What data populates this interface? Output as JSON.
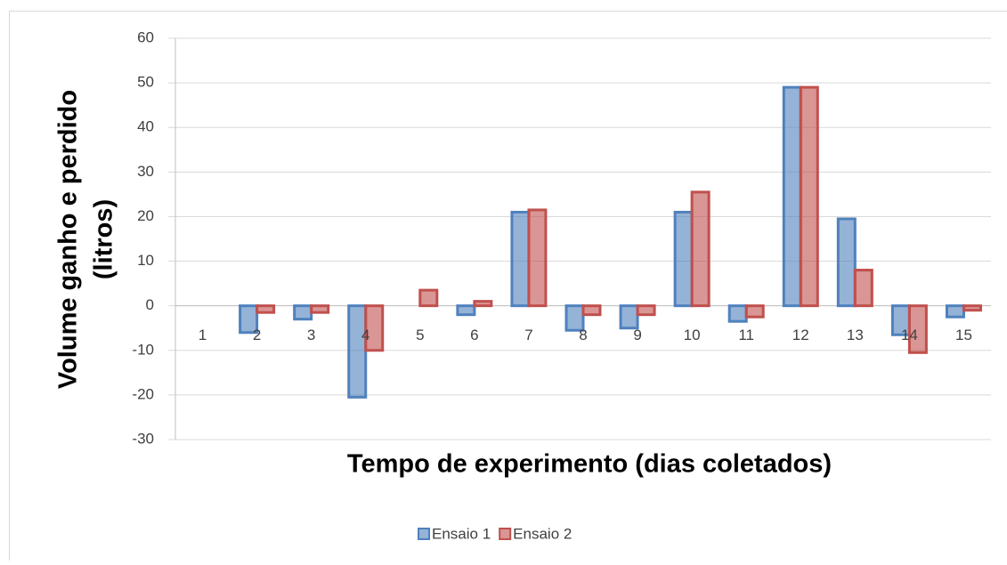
{
  "chart_data": {
    "type": "bar",
    "xlabel": "Tempo de experimento (dias coletados)",
    "ylabel": [
      "Volume ganho e perdido",
      "(litros)"
    ],
    "categories": [
      "1",
      "2",
      "3",
      "4",
      "5",
      "6",
      "7",
      "8",
      "9",
      "10",
      "11",
      "12",
      "13",
      "14",
      "15"
    ],
    "series": [
      {
        "name": "Ensaio 1",
        "color": "#4f81bd",
        "values": [
          0,
          -6,
          -3,
          -20.5,
          0,
          -2,
          21,
          -5.5,
          -5,
          21,
          -3.5,
          49,
          19.5,
          -6.5,
          -2.5
        ]
      },
      {
        "name": "Ensaio 2",
        "color": "#c0504d",
        "values": [
          0,
          -1.5,
          -1.5,
          -10,
          3.5,
          1,
          21.5,
          -2,
          -2,
          25.5,
          -2.5,
          49,
          8,
          -10.5,
          -1
        ]
      }
    ],
    "ylim": [
      -30,
      60
    ],
    "yticks": [
      -30,
      -20,
      -10,
      0,
      10,
      20,
      30,
      40,
      50,
      60
    ],
    "grid": true,
    "legend": "bottom"
  }
}
